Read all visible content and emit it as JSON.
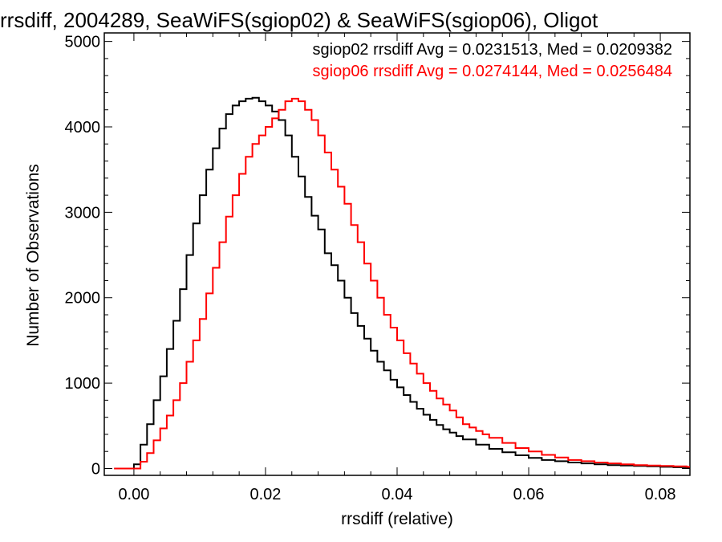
{
  "chart_data": {
    "type": "line",
    "title": "rrsdiff, 2004289, SeaWiFS(sgiop02) & SeaWiFS(sgiop06), Oligot",
    "xlabel": "rrsdiff (relative)",
    "ylabel": "Number of Observations",
    "xlim": [
      -0.0045,
      0.0845
    ],
    "ylim": [
      -80,
      5100
    ],
    "x_ticks": [
      0.0,
      0.02,
      0.04,
      0.06,
      0.08
    ],
    "x_tick_labels": [
      "0.00",
      "0.02",
      "0.04",
      "0.06",
      "0.08"
    ],
    "y_ticks": [
      0,
      1000,
      2000,
      3000,
      4000,
      5000
    ],
    "y_tick_labels": [
      "0",
      "1000",
      "2000",
      "3000",
      "4000",
      "5000"
    ],
    "grid": false,
    "legend_placement": "top-right",
    "style": "step",
    "series": [
      {
        "name": "sgiop02",
        "color": "#000000",
        "annotation": "sgiop02 rrsdiff Avg = 0.0231513, Med = 0.0209382",
        "x": [
          -0.003,
          -0.001,
          0.0,
          0.001,
          0.002,
          0.003,
          0.004,
          0.005,
          0.006,
          0.007,
          0.008,
          0.009,
          0.01,
          0.011,
          0.012,
          0.013,
          0.014,
          0.015,
          0.016,
          0.017,
          0.018,
          0.019,
          0.02,
          0.021,
          0.022,
          0.023,
          0.024,
          0.025,
          0.026,
          0.027,
          0.028,
          0.029,
          0.03,
          0.031,
          0.032,
          0.033,
          0.034,
          0.035,
          0.036,
          0.037,
          0.038,
          0.039,
          0.04,
          0.041,
          0.042,
          0.043,
          0.044,
          0.045,
          0.046,
          0.047,
          0.048,
          0.049,
          0.05,
          0.052,
          0.054,
          0.056,
          0.058,
          0.06,
          0.062,
          0.064,
          0.066,
          0.068,
          0.07,
          0.072,
          0.074,
          0.076,
          0.078,
          0.08,
          0.082,
          0.084
        ],
        "y": [
          0,
          0,
          50,
          280,
          520,
          800,
          1080,
          1400,
          1730,
          2100,
          2500,
          2870,
          3200,
          3500,
          3750,
          3980,
          4150,
          4250,
          4300,
          4330,
          4340,
          4300,
          4250,
          4180,
          4080,
          3900,
          3650,
          3420,
          3180,
          2960,
          2800,
          2520,
          2380,
          2200,
          2000,
          1820,
          1670,
          1520,
          1380,
          1250,
          1150,
          1040,
          950,
          860,
          780,
          700,
          630,
          570,
          510,
          460,
          420,
          380,
          340,
          280,
          230,
          190,
          155,
          125,
          100,
          85,
          70,
          60,
          50,
          40,
          35,
          30,
          25,
          20,
          15,
          12
        ]
      },
      {
        "name": "sgiop06",
        "color": "#ff0000",
        "annotation": "sgiop06 rrsdiff Avg = 0.0274144, Med = 0.0256484",
        "x": [
          -0.003,
          0.0,
          0.001,
          0.002,
          0.003,
          0.004,
          0.005,
          0.006,
          0.007,
          0.008,
          0.009,
          0.01,
          0.011,
          0.012,
          0.013,
          0.014,
          0.015,
          0.016,
          0.017,
          0.018,
          0.019,
          0.02,
          0.021,
          0.022,
          0.023,
          0.024,
          0.025,
          0.026,
          0.027,
          0.028,
          0.029,
          0.03,
          0.031,
          0.032,
          0.033,
          0.034,
          0.035,
          0.036,
          0.037,
          0.038,
          0.039,
          0.04,
          0.041,
          0.042,
          0.043,
          0.044,
          0.045,
          0.046,
          0.047,
          0.048,
          0.049,
          0.05,
          0.051,
          0.052,
          0.053,
          0.054,
          0.056,
          0.058,
          0.06,
          0.062,
          0.064,
          0.066,
          0.068,
          0.07,
          0.072,
          0.074,
          0.076,
          0.078,
          0.08,
          0.082,
          0.084
        ],
        "y": [
          0,
          0,
          80,
          180,
          330,
          470,
          620,
          800,
          1000,
          1250,
          1500,
          1750,
          2050,
          2350,
          2650,
          2950,
          3200,
          3450,
          3650,
          3800,
          3900,
          4000,
          4100,
          4200,
          4300,
          4330,
          4300,
          4200,
          4080,
          3900,
          3700,
          3500,
          3300,
          3100,
          2850,
          2650,
          2400,
          2200,
          2000,
          1800,
          1650,
          1500,
          1350,
          1230,
          1110,
          1000,
          910,
          820,
          750,
          680,
          600,
          520,
          480,
          440,
          400,
          360,
          300,
          240,
          200,
          160,
          130,
          100,
          85,
          70,
          60,
          50,
          40,
          35,
          30,
          25,
          20
        ]
      }
    ]
  }
}
